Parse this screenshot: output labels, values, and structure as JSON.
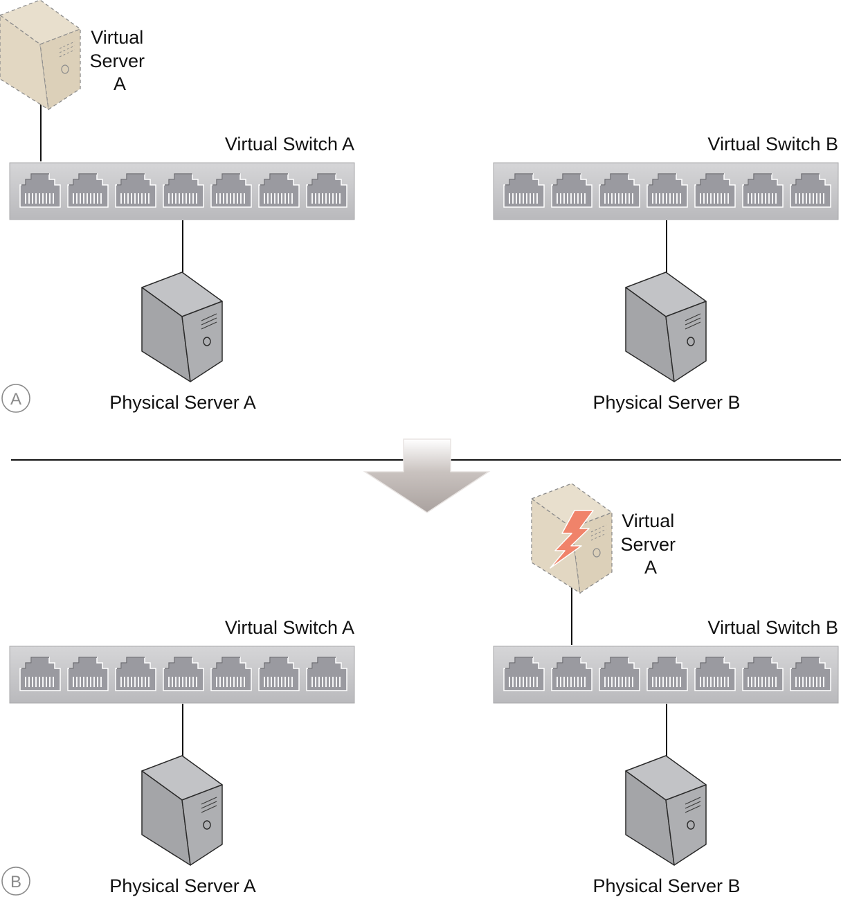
{
  "panels": [
    {
      "badge": "A",
      "virtual_switch_a": "Virtual Switch A",
      "virtual_switch_b": "Virtual Switch B",
      "physical_server_a": "Physical Server A",
      "physical_server_b": "Physical Server B",
      "virtual_server": {
        "line1": "Virtual",
        "line2": "Server",
        "line3": "A",
        "host_switch": "A",
        "status": "normal"
      }
    },
    {
      "badge": "B",
      "virtual_switch_a": "Virtual Switch A",
      "virtual_switch_b": "Virtual Switch B",
      "physical_server_a": "Physical Server A",
      "physical_server_b": "Physical Server B",
      "virtual_server": {
        "line1": "Virtual",
        "line2": "Server",
        "line3": "A",
        "host_switch": "B",
        "status": "failure"
      }
    }
  ],
  "switch_ports": 7,
  "colors": {
    "switch_body": "#c4c4c7",
    "port": "#9a9aa0",
    "physical_server": "#a9aaad",
    "virtual_server": "#e3d8c3",
    "failure_bolt": "#f0836a",
    "arrow": "#b5aeab"
  }
}
